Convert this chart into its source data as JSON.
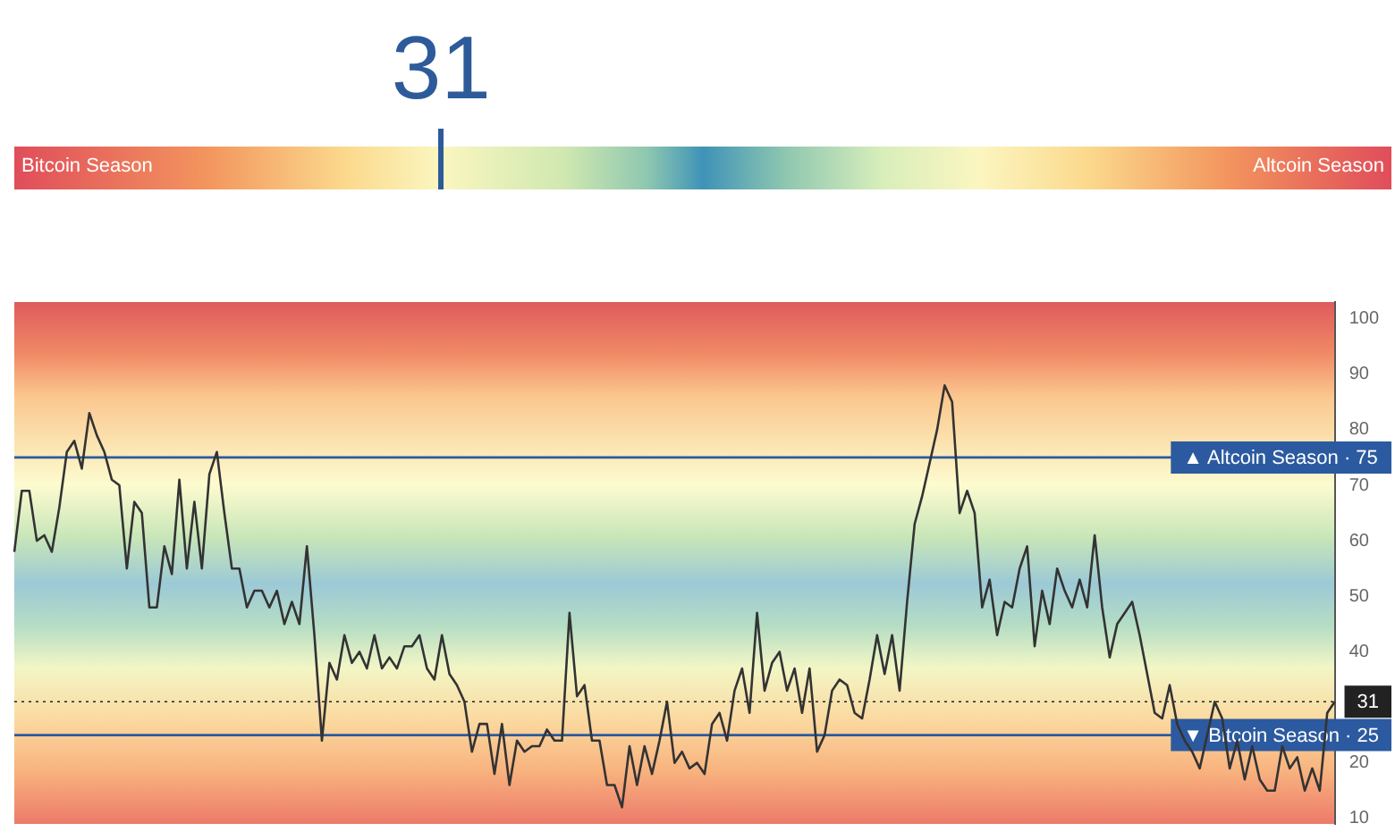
{
  "chart_data": [
    {
      "type": "other",
      "title": "31",
      "annotations": [
        "Bitcoin Season",
        "Altcoin Season"
      ]
    },
    {
      "type": "line",
      "tick_labels": "y",
      "ylim": [
        9,
        103
      ],
      "yticks": [
        10,
        20,
        40,
        50,
        60,
        70,
        80,
        90,
        100
      ],
      "categories": [
        null,
        null,
        null,
        null,
        null,
        null,
        null,
        null,
        null,
        null,
        null,
        null,
        null,
        null,
        null,
        null,
        null,
        null,
        null,
        null,
        null,
        null,
        null,
        null,
        null,
        null,
        null,
        null,
        null,
        null,
        null,
        null,
        null,
        null,
        null,
        null,
        null,
        null,
        null,
        null,
        null,
        null,
        null,
        null,
        null,
        null,
        null,
        null,
        null,
        null,
        null,
        null,
        null,
        null,
        null,
        null,
        null,
        null,
        null,
        null,
        null,
        null,
        null,
        null,
        null,
        null,
        null,
        null,
        null,
        null,
        null,
        null,
        null,
        null,
        null,
        null,
        null,
        null,
        null,
        null,
        null,
        null,
        null,
        null,
        null,
        null,
        null,
        null,
        null,
        null,
        null,
        null,
        null,
        null,
        null,
        null,
        null,
        null,
        null,
        null,
        null,
        null,
        null,
        null,
        null,
        null,
        null,
        null,
        null,
        null,
        null,
        null,
        null,
        null,
        null,
        null,
        null,
        null,
        null,
        null,
        null,
        null,
        null,
        null,
        null,
        null,
        null,
        null,
        null,
        null,
        null,
        null,
        null,
        null,
        null,
        null,
        null,
        null,
        null,
        null,
        null,
        null,
        null,
        null,
        null,
        null,
        null,
        null,
        null,
        null,
        null,
        null,
        null,
        null,
        null,
        null,
        null,
        null,
        null,
        null,
        null,
        null,
        null,
        null,
        null,
        null,
        null,
        null,
        null,
        null,
        null,
        null,
        null,
        null,
        null,
        null,
        null
      ],
      "color": "#333333",
      "values": [
        58,
        69,
        69,
        60,
        61,
        58,
        66,
        76,
        78,
        73,
        83,
        79,
        76,
        71,
        70,
        55,
        67,
        65,
        48,
        48,
        59,
        54,
        71,
        55,
        67,
        55,
        72,
        76,
        65,
        55,
        55,
        48,
        51,
        51,
        48,
        51,
        45,
        49,
        45,
        59,
        43,
        24,
        38,
        35,
        43,
        38,
        40,
        37,
        43,
        37,
        39,
        37,
        41,
        41,
        43,
        37,
        35,
        43,
        36,
        34,
        31,
        22,
        27,
        27,
        18,
        27,
        16,
        24,
        22,
        23,
        23,
        26,
        24,
        24,
        47,
        32,
        34,
        24,
        24,
        16,
        16,
        12,
        23,
        16,
        23,
        18,
        24,
        31,
        20,
        22,
        19,
        20,
        18,
        27,
        29,
        24,
        33,
        37,
        29,
        47,
        33,
        38,
        40,
        33,
        37,
        29,
        37,
        22,
        25,
        33,
        35,
        34,
        29,
        28,
        35,
        43,
        36,
        43,
        33,
        49,
        63,
        68,
        74,
        80,
        88,
        85,
        65,
        69,
        65,
        48,
        53,
        43,
        49,
        48,
        55,
        59,
        41,
        51,
        45,
        55,
        51,
        48,
        53,
        48,
        61,
        48,
        39,
        45,
        47,
        49,
        43,
        36,
        29,
        28,
        34,
        27,
        24,
        22,
        19,
        25,
        31,
        28,
        19,
        24,
        17,
        23,
        17,
        15,
        15,
        23,
        19,
        21,
        15,
        19,
        15,
        29,
        31
      ],
      "ref_lines": [
        {
          "axis": "y",
          "value": 75,
          "label": "▲ Altcoin Season · 75",
          "color": "#2c5aa0",
          "line_style": "solid"
        },
        {
          "axis": "y",
          "value": 25,
          "label": "▼ Bitcoin Season · 25",
          "color": "#2c5aa0",
          "line_style": "solid"
        },
        {
          "axis": "y",
          "value": 31,
          "label": "31",
          "color": "#222222",
          "line_style": "dotted"
        }
      ]
    }
  ]
}
